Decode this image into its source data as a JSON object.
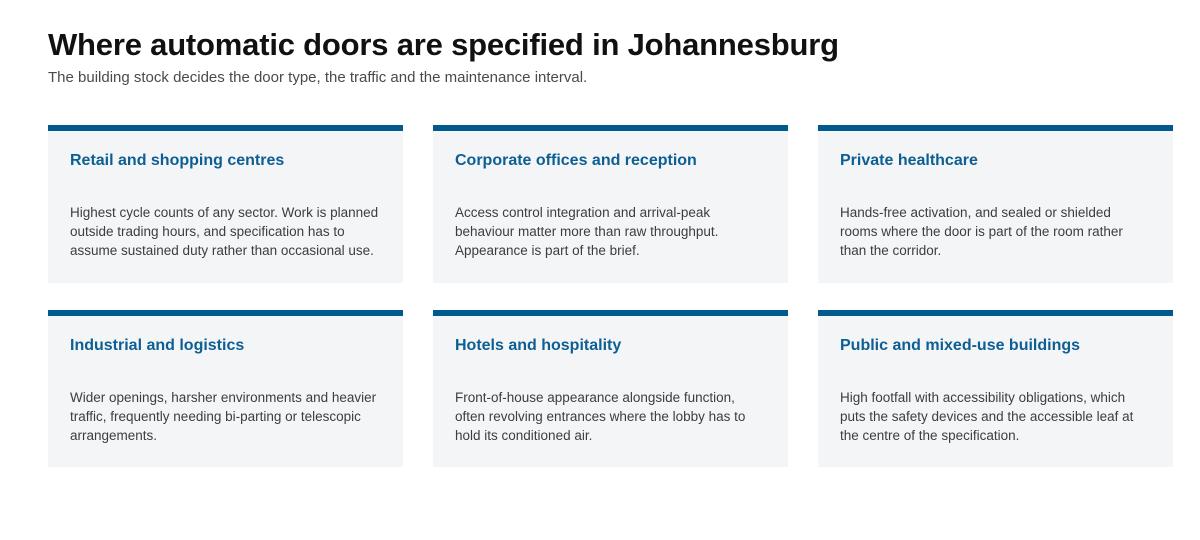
{
  "header": {
    "title": "Where automatic doors are specified in Johannesburg",
    "subtitle": "The building stock decides the door type, the traffic and the maintenance interval."
  },
  "colors": {
    "accent": "#005a8d",
    "card_title": "#0d5f93",
    "card_background": "#f3f5f7"
  },
  "sectors": [
    {
      "title": "Retail and shopping centres",
      "body": "Highest cycle counts of any sector. Work is planned outside trading hours, and specification has to assume sustained duty rather than occasional use."
    },
    {
      "title": "Corporate offices and reception",
      "body": "Access control integration and arrival-peak behaviour matter more than raw throughput. Appearance is part of the brief."
    },
    {
      "title": "Private healthcare",
      "body": "Hands-free activation, and sealed or shielded rooms where the door is part of the room rather than the corridor."
    },
    {
      "title": "Industrial and logistics",
      "body": "Wider openings, harsher environments and heavier traffic, frequently needing bi-parting or telescopic arrangements."
    },
    {
      "title": "Hotels and hospitality",
      "body": "Front-of-house appearance alongside function, often revolving entrances where the lobby has to hold its conditioned air."
    },
    {
      "title": "Public and mixed-use buildings",
      "body": "High footfall with accessibility obligations, which puts the safety devices and the accessible leaf at the centre of the specification."
    }
  ]
}
